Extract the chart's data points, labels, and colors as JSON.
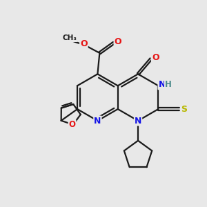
{
  "background_color": "#e8e8e8",
  "bond_color": "#1a1a1a",
  "bond_width": 1.6,
  "atom_colors": {
    "N": "#1414e6",
    "O": "#e61414",
    "S": "#b8b800",
    "H": "#4a8a8a",
    "C": "#1a1a1a"
  },
  "figsize": [
    3.0,
    3.0
  ],
  "dpi": 100
}
